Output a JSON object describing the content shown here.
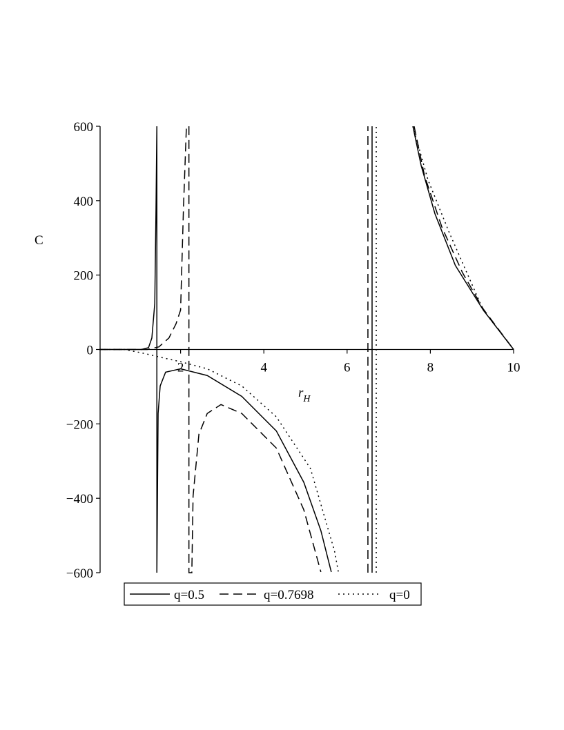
{
  "chart_data": {
    "type": "line",
    "ylabel": "C",
    "xlabel": "r",
    "xlabel_subscript": "H",
    "xlim": [
      0,
      10
    ],
    "xticks": [
      2,
      4,
      6,
      8,
      10
    ],
    "ylim": [
      -600,
      600
    ],
    "yticks": [
      {
        "value": -600,
        "label": "−600"
      },
      {
        "value": -400,
        "label": "−400"
      },
      {
        "value": -200,
        "label": "−200"
      },
      0,
      200,
      400,
      600
    ],
    "legend": "bottom",
    "series": [
      {
        "name": "q=0.5",
        "color": "#000000",
        "dash": "solid",
        "x": [
          0.05,
          1.06,
          1.23,
          1.31,
          1.38,
          1.41,
          1.43,
          1.43,
          1.46,
          1.51,
          1.64,
          2.0,
          2.64,
          3.47,
          4.3,
          4.96,
          5.37,
          5.62,
          6.0,
          6.6,
          6.6,
          7.0,
          7.58,
          7.78,
          8.11,
          8.6,
          9.27,
          10.0
        ],
        "values": [
          0,
          0,
          5,
          31,
          124,
          383,
          600,
          -600,
          -172,
          -98,
          -61,
          -52,
          -70,
          -126,
          -219,
          -357,
          -487,
          -598,
          null,
          -600,
          600,
          null,
          600,
          494,
          365,
          226,
          106,
          0
        ]
      },
      {
        "name": "q=0.7698",
        "color": "#000000",
        "dash": "dashed",
        "x": [
          0.05,
          1.2,
          1.48,
          1.72,
          1.89,
          2.0,
          2.07,
          2.14,
          2.2,
          2.2,
          2.27,
          2.3,
          2.44,
          2.64,
          2.97,
          3.47,
          4.3,
          4.96,
          5.37,
          6.0,
          6.5,
          6.5,
          7.0,
          7.61,
          7.86,
          8.28,
          8.77,
          9.27,
          10.0
        ],
        "values": [
          0,
          0,
          7,
          31,
          69,
          106,
          383,
          600,
          600,
          -600,
          -600,
          -394,
          -228,
          -172,
          -148,
          -172,
          -265,
          -431,
          -598,
          null,
          -600,
          600,
          null,
          600,
          467,
          328,
          207,
          109,
          0
        ]
      },
      {
        "name": "q=0",
        "color": "#000000",
        "dash": "dotted",
        "x": [
          0.05,
          0.65,
          1.06,
          1.64,
          2.0,
          2.64,
          3.47,
          4.3,
          5.12,
          5.7,
          5.79,
          6.2,
          6.7,
          6.7,
          7.1,
          7.58,
          7.94,
          8.44,
          9.27,
          10.0
        ],
        "values": [
          0,
          0,
          -9,
          -24,
          -33,
          -52,
          -98,
          -181,
          -320,
          -543,
          -598,
          null,
          -600,
          600,
          null,
          600,
          457,
          318,
          106,
          0
        ]
      }
    ]
  }
}
